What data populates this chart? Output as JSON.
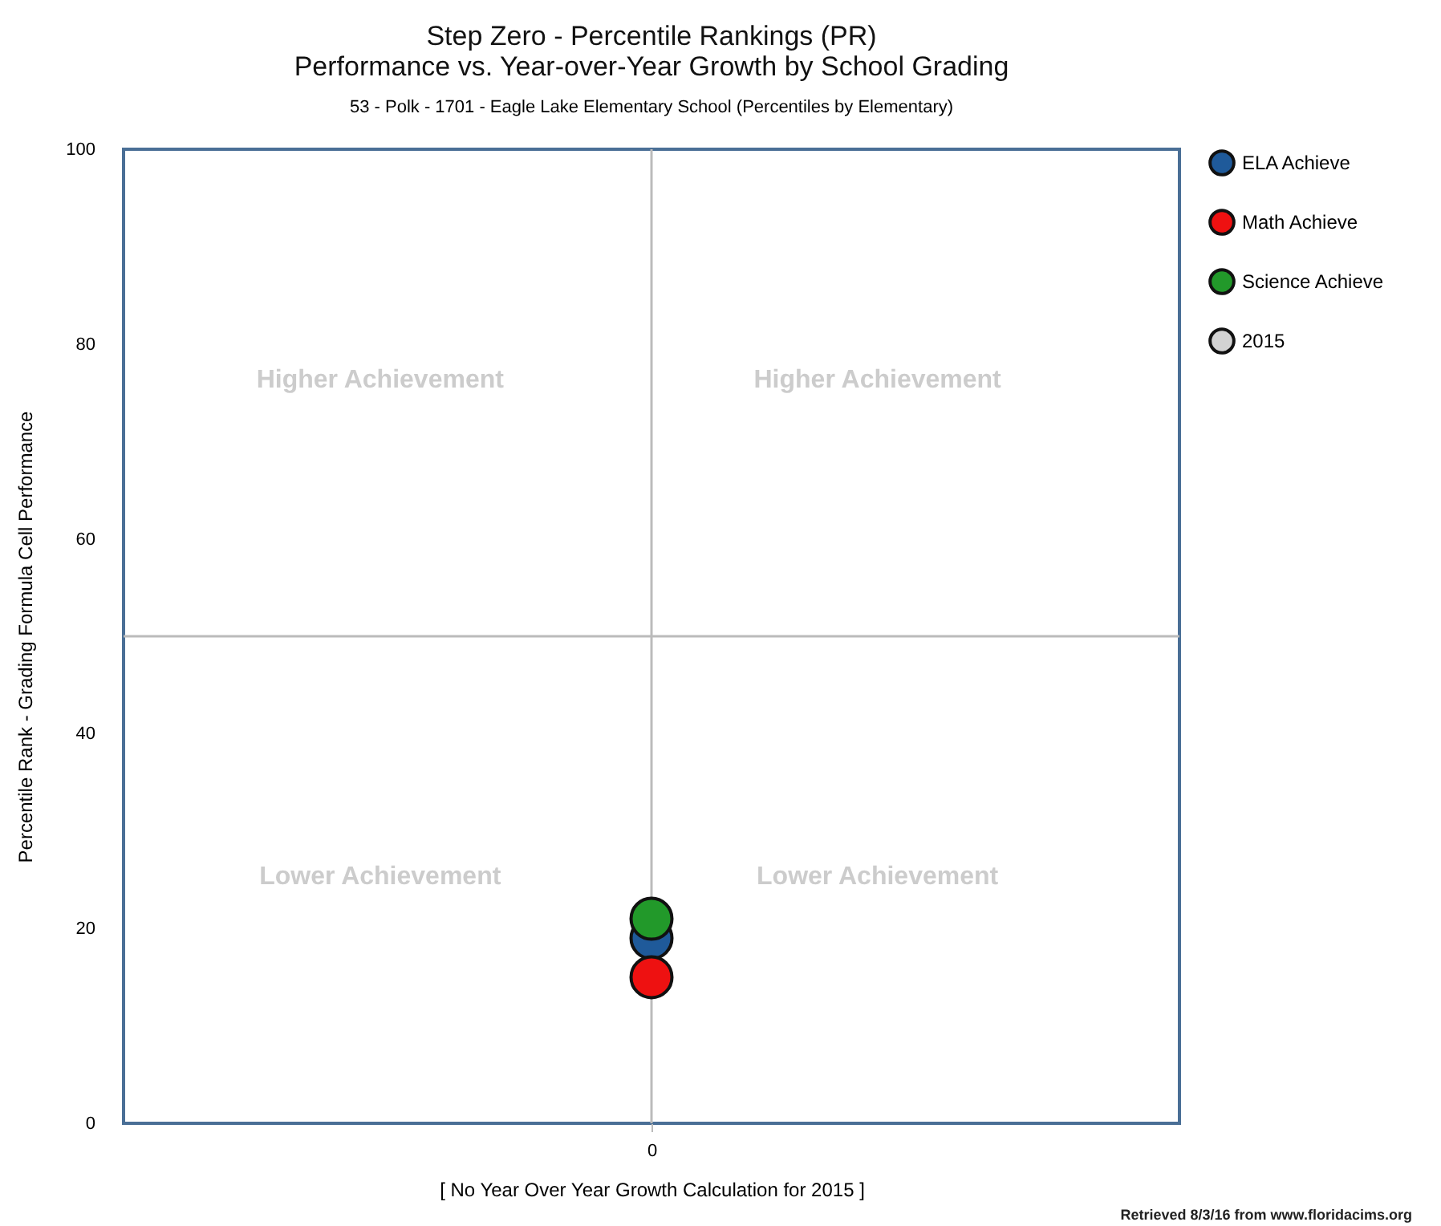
{
  "chart_data": {
    "type": "scatter",
    "title": "Step Zero - Percentile Rankings (PR)\nPerformance vs. Year-over-Year Growth by School Grading",
    "subtitle": "53 - Polk - 1701 - Eagle Lake Elementary School (Percentiles by Elementary)",
    "xlabel": "[ No Year Over Year Growth Calculation for 2015 ]",
    "ylabel": "Percentile Rank - Grading Formula Cell Performance",
    "categories": [
      "0"
    ],
    "series": [
      {
        "name": "ELA Achieve",
        "color": "#1f5a9a",
        "values": [
          19
        ]
      },
      {
        "name": "Math Achieve",
        "color": "#ee1111",
        "values": [
          15
        ]
      },
      {
        "name": "Science Achieve",
        "color": "#22992a",
        "values": [
          21
        ]
      },
      {
        "name": "2015",
        "color": "#d3d3d3",
        "values": [
          null
        ]
      }
    ],
    "ylim": [
      0,
      100
    ],
    "yticks": [
      0,
      20,
      40,
      60,
      80,
      100
    ],
    "ref_lines": [
      {
        "axis": "x",
        "value": "0",
        "color": "#bbbbbb"
      },
      {
        "axis": "y",
        "value": 50,
        "color": "#bbbbbb"
      }
    ],
    "annotations": [
      "Higher Achievement",
      "Higher Achievement",
      "Lower Achievement",
      "Lower Achievement",
      "Retrieved 8/3/16 from www.floridacims.org"
    ],
    "grid": false,
    "legend": "top right",
    "marker": "circle"
  }
}
